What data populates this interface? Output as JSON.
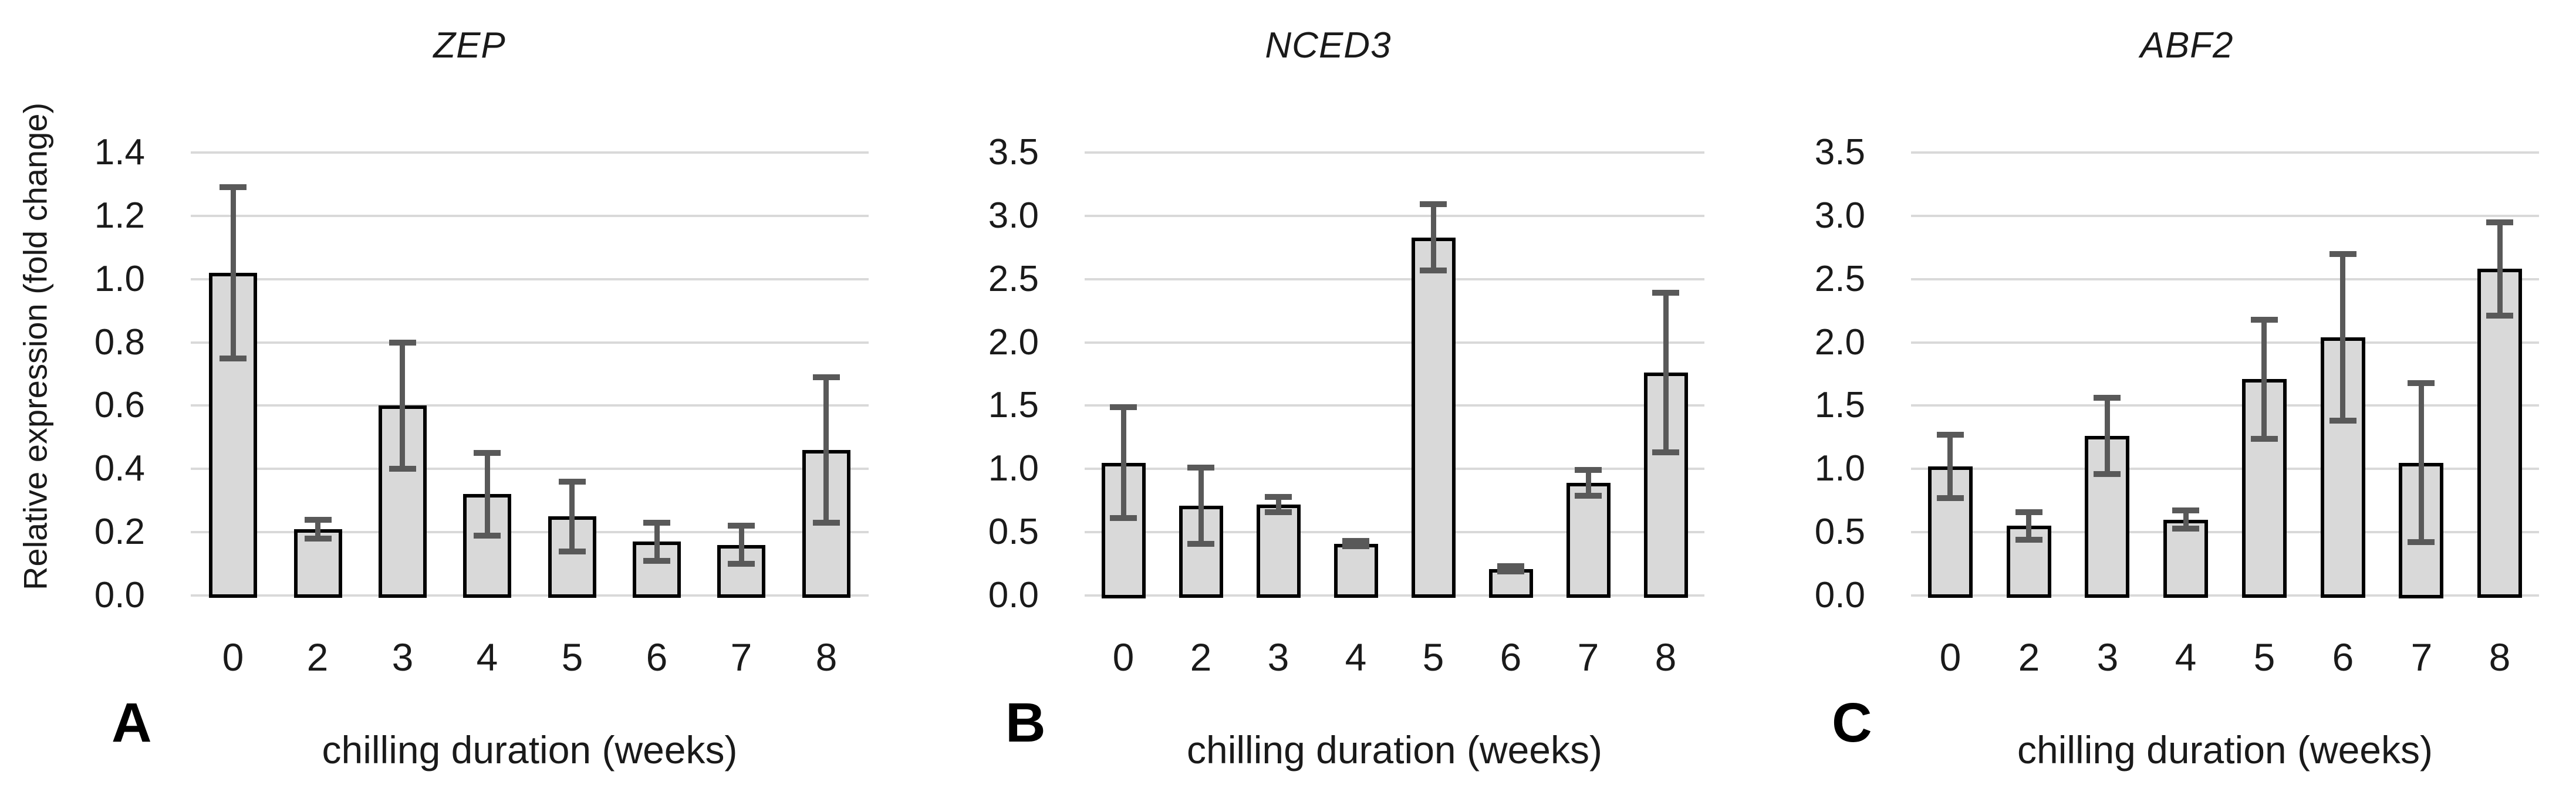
{
  "figure": {
    "y_axis_label": "Relative expression (fold change)",
    "x_axis_label": "chilling duration (weeks)",
    "colors": {
      "bar_fill": "#d9d9d9",
      "bar_border": "#000000",
      "error_bar": "#595959",
      "gridline": "#d9d9d9",
      "text": "#1a1a1a",
      "background": "#ffffff"
    }
  },
  "chart_data": [
    {
      "type": "bar",
      "panel_label": "A",
      "title": "ZEP",
      "xlabel": "chilling duration (weeks)",
      "ylabel": "Relative expression (fold change)",
      "categories": [
        "0",
        "2",
        "3",
        "4",
        "5",
        "6",
        "7",
        "8"
      ],
      "values": [
        1.02,
        0.21,
        0.6,
        0.32,
        0.25,
        0.17,
        0.16,
        0.46
      ],
      "errors": [
        0.27,
        0.03,
        0.2,
        0.13,
        0.11,
        0.06,
        0.06,
        0.23
      ],
      "ylim": [
        0,
        1.4
      ],
      "ytick_step": 0.2,
      "ytick_labels": [
        "1.4",
        "1.2",
        "1.0",
        "0.8",
        "0.6",
        "0.4",
        "0.2",
        "0.0"
      ],
      "grid": true,
      "legend": false
    },
    {
      "type": "bar",
      "panel_label": "B",
      "title": "NCED3",
      "xlabel": "chilling duration (weeks)",
      "ylabel": "",
      "categories": [
        "0",
        "2",
        "3",
        "4",
        "5",
        "6",
        "7",
        "8"
      ],
      "values": [
        1.05,
        0.71,
        0.72,
        0.41,
        2.83,
        0.21,
        0.89,
        1.76
      ],
      "errors": [
        0.44,
        0.3,
        0.06,
        0.02,
        0.26,
        0.02,
        0.1,
        0.63
      ],
      "ylim": [
        0,
        3.5
      ],
      "ytick_step": 0.5,
      "ytick_labels": [
        "3.5",
        "3.0",
        "2.5",
        "2.0",
        "1.5",
        "1.0",
        "0.5",
        "0.0"
      ],
      "grid": true,
      "legend": false
    },
    {
      "type": "bar",
      "panel_label": "C",
      "title": "ABF2",
      "xlabel": "chilling duration (weeks)",
      "ylabel": "",
      "categories": [
        "0",
        "2",
        "3",
        "4",
        "5",
        "6",
        "7",
        "8"
      ],
      "values": [
        1.02,
        0.55,
        1.26,
        0.6,
        1.71,
        2.04,
        1.05,
        2.58
      ],
      "errors": [
        0.25,
        0.11,
        0.3,
        0.07,
        0.47,
        0.66,
        0.63,
        0.37
      ],
      "ylim": [
        0,
        3.5
      ],
      "ytick_step": 0.5,
      "ytick_labels": [
        "3.5",
        "3.0",
        "2.5",
        "2.0",
        "1.5",
        "1.0",
        "0.5",
        "0.0"
      ],
      "grid": true,
      "legend": false
    }
  ]
}
